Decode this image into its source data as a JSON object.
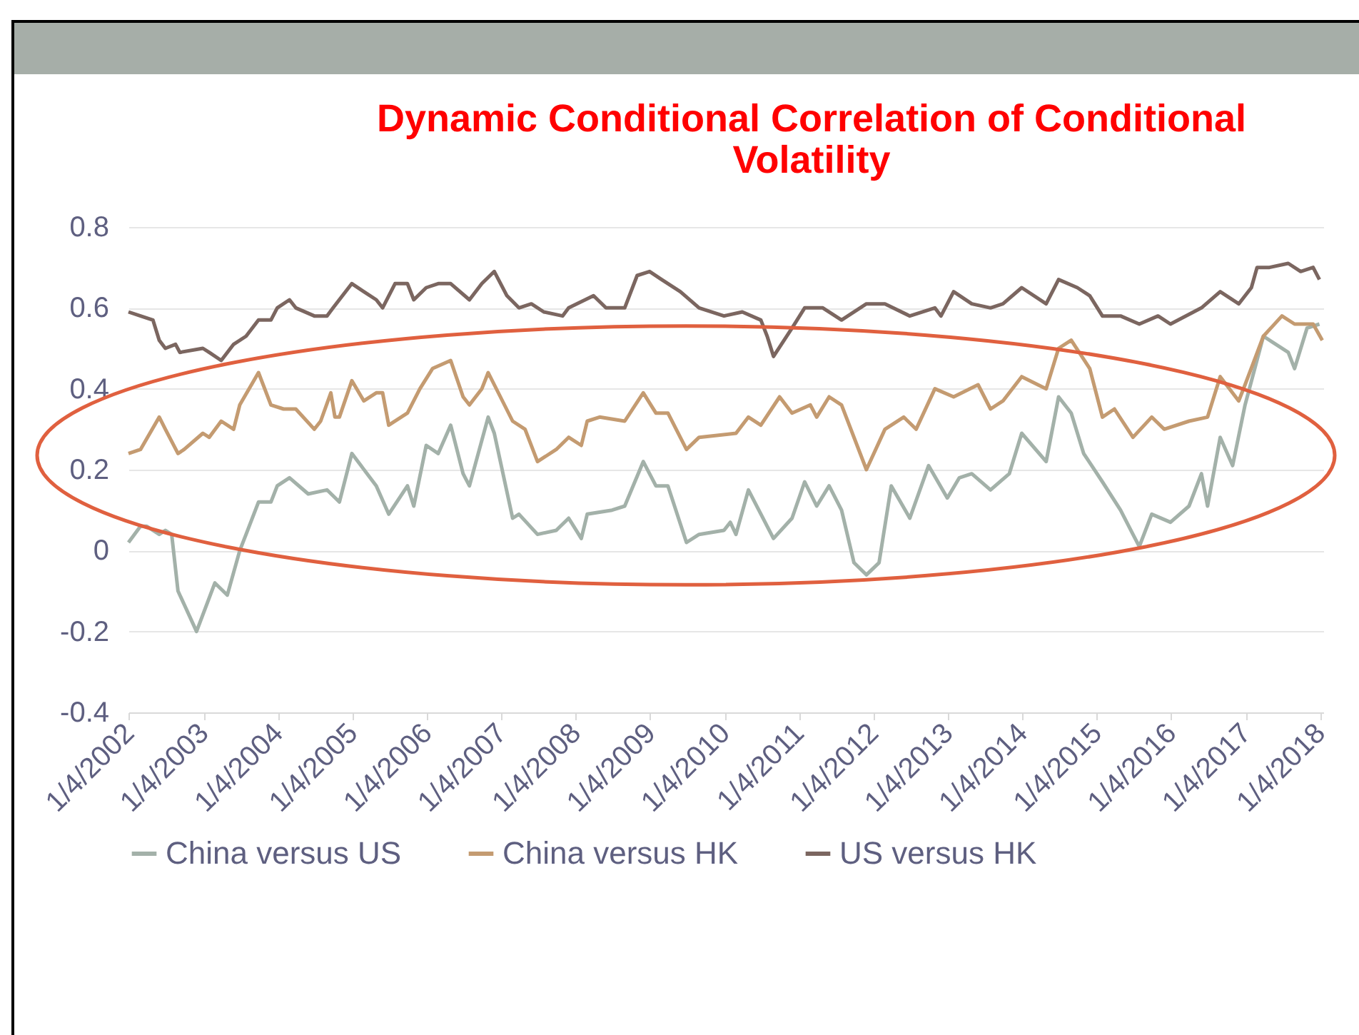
{
  "chart_data": {
    "type": "line",
    "title": "Dynamic Conditional Correlation of Conditional Volatility",
    "xlim": [
      "2002-01-01",
      "2018-01-20"
    ],
    "xticks": [
      {
        "value": "2002-01-04",
        "label": "1/4/2002"
      },
      {
        "value": "2003-01-04",
        "label": "1/4/2003"
      },
      {
        "value": "2004-01-04",
        "label": "1/4/2004"
      },
      {
        "value": "2005-01-04",
        "label": "1/4/2005"
      },
      {
        "value": "2006-01-04",
        "label": "1/4/2006"
      },
      {
        "value": "2007-01-04",
        "label": "1/4/2007"
      },
      {
        "value": "2008-01-04",
        "label": "1/4/2008"
      },
      {
        "value": "2009-01-04",
        "label": "1/4/2009"
      },
      {
        "value": "2010-01-04",
        "label": "1/4/2010"
      },
      {
        "value": "2011-01-04",
        "label": "1/4/2011"
      },
      {
        "value": "2012-01-04",
        "label": "1/4/2012"
      },
      {
        "value": "2013-01-04",
        "label": "1/4/2013"
      },
      {
        "value": "2014-01-04",
        "label": "1/4/2014"
      },
      {
        "value": "2015-01-04",
        "label": "1/4/2015"
      },
      {
        "value": "2016-01-04",
        "label": "1/4/2016"
      },
      {
        "value": "2017-01-04",
        "label": "1/4/2017"
      },
      {
        "value": "2018-01-04",
        "label": "1/4/2018"
      }
    ],
    "ylim": [
      -0.4,
      0.8
    ],
    "yticks": [
      -0.4,
      -0.2,
      0,
      0.2,
      0.4,
      0.6,
      0.8
    ],
    "grid": "y",
    "legend": "bottom",
    "series": [
      {
        "name": "China versus US",
        "color": "#a3b1a9",
        "x": [
          "2002-01",
          "2002-03",
          "2002-04",
          "2002-06",
          "2002-07",
          "2002-08",
          "2002-09",
          "2002-12",
          "2003-03",
          "2003-05",
          "2003-07",
          "2003-08",
          "2003-10",
          "2003-12",
          "2004-01",
          "2004-03",
          "2004-06",
          "2004-09",
          "2004-11",
          "2005-01",
          "2005-05",
          "2005-07",
          "2005-10",
          "2005-11",
          "2006-01",
          "2006-03",
          "2006-05",
          "2006-07",
          "2006-08",
          "2006-11",
          "2006-12",
          "2007-03",
          "2007-04",
          "2007-07",
          "2007-10",
          "2007-12",
          "2008-02",
          "2008-03",
          "2008-07",
          "2008-09",
          "2008-12",
          "2009-02",
          "2009-04",
          "2009-07",
          "2009-09",
          "2010-01",
          "2010-02",
          "2010-03",
          "2010-05",
          "2010-09",
          "2010-12",
          "2011-02",
          "2011-04",
          "2011-06",
          "2011-08",
          "2011-10",
          "2011-12",
          "2012-02",
          "2012-04",
          "2012-07",
          "2012-10",
          "2013-01",
          "2013-03",
          "2013-05",
          "2013-08",
          "2013-11",
          "2014-01",
          "2014-05",
          "2014-07",
          "2014-09",
          "2014-11",
          "2015-02",
          "2015-05",
          "2015-07",
          "2015-08",
          "2015-10",
          "2016-01",
          "2016-04",
          "2016-06",
          "2016-07",
          "2016-09",
          "2016-11",
          "2017-01",
          "2017-04",
          "2017-06",
          "2017-08",
          "2017-09",
          "2017-11",
          "2018-01"
        ],
        "values": [
          0.02,
          0.06,
          0.06,
          0.04,
          0.05,
          0.04,
          -0.1,
          -0.2,
          -0.08,
          -0.11,
          0.0,
          0.04,
          0.12,
          0.12,
          0.16,
          0.18,
          0.14,
          0.15,
          0.12,
          0.24,
          0.16,
          0.09,
          0.16,
          0.11,
          0.26,
          0.24,
          0.31,
          0.19,
          0.16,
          0.33,
          0.29,
          0.08,
          0.09,
          0.04,
          0.05,
          0.08,
          0.03,
          0.09,
          0.1,
          0.11,
          0.22,
          0.16,
          0.16,
          0.02,
          0.04,
          0.05,
          0.07,
          0.04,
          0.15,
          0.03,
          0.08,
          0.17,
          0.11,
          0.16,
          0.1,
          -0.03,
          -0.06,
          -0.03,
          0.16,
          0.08,
          0.21,
          0.13,
          0.18,
          0.19,
          0.15,
          0.19,
          0.29,
          0.22,
          0.38,
          0.34,
          0.24,
          0.17,
          0.1,
          0.04,
          0.01,
          0.09,
          0.07,
          0.11,
          0.19,
          0.11,
          0.28,
          0.21,
          0.36,
          0.53,
          0.51,
          0.49,
          0.45,
          0.55,
          0.56
        ]
      },
      {
        "name": "China versus HK",
        "color": "#c49b71",
        "x": [
          "2002-01",
          "2002-03",
          "2002-06",
          "2002-07",
          "2002-09",
          "2002-10",
          "2003-01",
          "2003-02",
          "2003-04",
          "2003-06",
          "2003-07",
          "2003-10",
          "2003-12",
          "2004-02",
          "2004-04",
          "2004-07",
          "2004-08",
          "2004-09-20",
          "2004-10-10",
          "2004-11",
          "2005-01",
          "2005-03",
          "2005-05",
          "2005-06",
          "2005-07",
          "2005-10",
          "2005-12",
          "2006-02",
          "2006-05",
          "2006-07",
          "2006-08",
          "2006-10",
          "2006-11",
          "2007-03",
          "2007-05",
          "2007-07",
          "2007-10",
          "2007-12",
          "2008-02",
          "2008-03",
          "2008-05",
          "2008-09",
          "2008-12",
          "2009-02",
          "2009-04",
          "2009-07",
          "2009-09",
          "2010-03",
          "2010-05",
          "2010-07",
          "2010-10",
          "2010-12",
          "2011-03",
          "2011-04",
          "2011-06",
          "2011-08",
          "2011-12",
          "2012-03",
          "2012-06",
          "2012-08",
          "2012-11",
          "2013-02",
          "2013-06",
          "2013-08",
          "2013-10",
          "2014-01",
          "2014-05",
          "2014-07",
          "2014-09",
          "2014-12",
          "2015-02",
          "2015-04",
          "2015-07",
          "2015-10",
          "2015-12",
          "2016-04",
          "2016-07",
          "2016-09",
          "2016-12",
          "2017-01",
          "2017-04",
          "2017-07",
          "2017-09",
          "2017-12",
          "2018-01-15"
        ],
        "values": [
          0.24,
          0.25,
          0.33,
          0.3,
          0.24,
          0.25,
          0.29,
          0.28,
          0.32,
          0.3,
          0.36,
          0.44,
          0.36,
          0.35,
          0.35,
          0.3,
          0.32,
          0.39,
          0.33,
          0.33,
          0.42,
          0.37,
          0.39,
          0.39,
          0.31,
          0.34,
          0.4,
          0.45,
          0.47,
          0.38,
          0.36,
          0.4,
          0.44,
          0.32,
          0.3,
          0.22,
          0.25,
          0.28,
          0.26,
          0.32,
          0.33,
          0.32,
          0.39,
          0.34,
          0.34,
          0.25,
          0.28,
          0.29,
          0.33,
          0.31,
          0.38,
          0.34,
          0.36,
          0.33,
          0.38,
          0.36,
          0.2,
          0.3,
          0.33,
          0.3,
          0.4,
          0.38,
          0.41,
          0.35,
          0.37,
          0.43,
          0.4,
          0.5,
          0.52,
          0.45,
          0.33,
          0.35,
          0.28,
          0.33,
          0.3,
          0.32,
          0.33,
          0.43,
          0.37,
          0.41,
          0.53,
          0.58,
          0.56,
          0.56,
          0.52
        ]
      },
      {
        "name": "US versus HK",
        "color": "#7b6660",
        "x": [
          "2002-01",
          "2002-03",
          "2002-05",
          "2002-06",
          "2002-07",
          "2002-08-20",
          "2002-09-10",
          "2003-01",
          "2003-02",
          "2003-04",
          "2003-06",
          "2003-08",
          "2003-10",
          "2003-12",
          "2004-01",
          "2004-03",
          "2004-04",
          "2004-07",
          "2004-09",
          "2004-10",
          "2005-01",
          "2005-03",
          "2005-05",
          "2005-06",
          "2005-08",
          "2005-10",
          "2005-11",
          "2006-01",
          "2006-03",
          "2006-05",
          "2006-08",
          "2006-10",
          "2006-12",
          "2007-02",
          "2007-04",
          "2007-06",
          "2007-08",
          "2007-11",
          "2007-12",
          "2008-04",
          "2008-06",
          "2008-09",
          "2008-11",
          "2009-01",
          "2009-03",
          "2009-06",
          "2009-09",
          "2010-01",
          "2010-04",
          "2010-07",
          "2010-08",
          "2010-09",
          "2010-12",
          "2011-02",
          "2011-05",
          "2011-08",
          "2011-12",
          "2012-03",
          "2012-07",
          "2012-11",
          "2012-12",
          "2013-02",
          "2013-05",
          "2013-08",
          "2013-10",
          "2014-01",
          "2014-05",
          "2014-07",
          "2014-10",
          "2014-12",
          "2015-02",
          "2015-05",
          "2015-08",
          "2015-11",
          "2016-01",
          "2016-06",
          "2016-09",
          "2016-12",
          "2017-02",
          "2017-03",
          "2017-05",
          "2017-08",
          "2017-10",
          "2017-12",
          "2018-01"
        ],
        "values": [
          0.59,
          0.58,
          0.57,
          0.52,
          0.5,
          0.51,
          0.49,
          0.5,
          0.49,
          0.47,
          0.51,
          0.53,
          0.57,
          0.57,
          0.6,
          0.62,
          0.6,
          0.58,
          0.58,
          0.6,
          0.66,
          0.64,
          0.62,
          0.6,
          0.66,
          0.66,
          0.62,
          0.65,
          0.66,
          0.66,
          0.62,
          0.66,
          0.69,
          0.63,
          0.6,
          0.61,
          0.59,
          0.58,
          0.6,
          0.63,
          0.6,
          0.6,
          0.68,
          0.69,
          0.67,
          0.64,
          0.6,
          0.58,
          0.59,
          0.57,
          0.53,
          0.48,
          0.55,
          0.6,
          0.6,
          0.57,
          0.61,
          0.61,
          0.58,
          0.6,
          0.58,
          0.64,
          0.61,
          0.6,
          0.61,
          0.65,
          0.61,
          0.67,
          0.65,
          0.63,
          0.58,
          0.58,
          0.56,
          0.58,
          0.56,
          0.6,
          0.64,
          0.61,
          0.65,
          0.7,
          0.7,
          0.71,
          0.69,
          0.7,
          0.67
        ]
      }
    ]
  }
}
